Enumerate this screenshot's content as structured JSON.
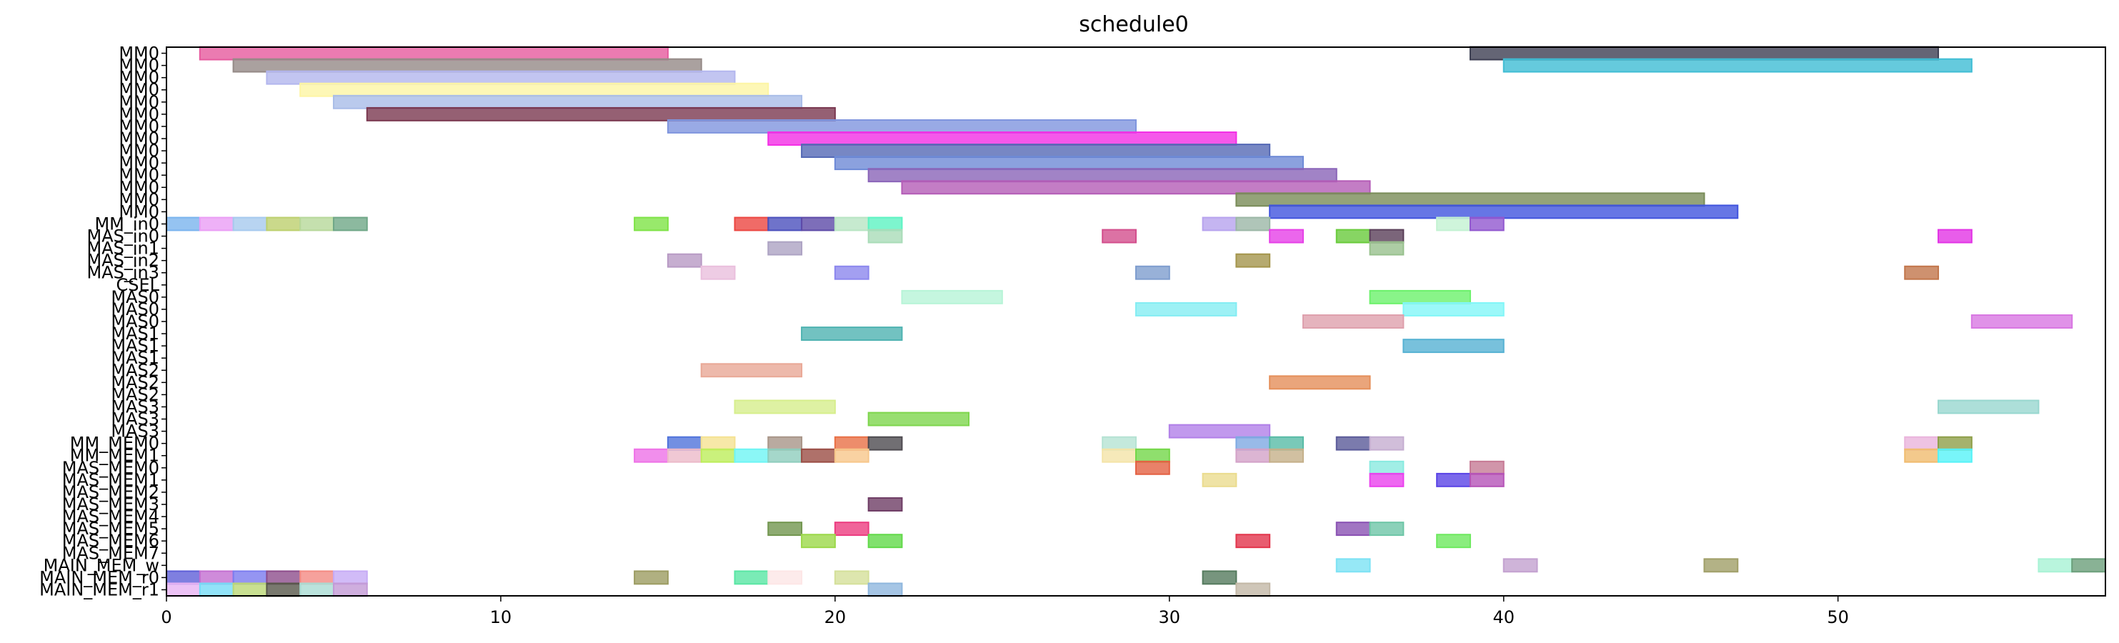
{
  "chart_data": {
    "type": "gantt",
    "title": "schedule0",
    "xlabel": "",
    "ylabel": "",
    "xlim": [
      0,
      58
    ],
    "xticks": [
      0,
      10,
      20,
      30,
      40,
      50
    ],
    "grid": false,
    "rows": [
      "MM0",
      "MM0",
      "MM0",
      "MM0",
      "MM0",
      "MM0",
      "MM0",
      "MM0",
      "MM0",
      "MM0",
      "MM0",
      "MM0",
      "MM0",
      "MM0",
      "MM_in0",
      "MAS_in0",
      "MAS_in1",
      "MAS_in2",
      "MAS_in3",
      "CSEL",
      "MAS0",
      "MAS0",
      "MAS0",
      "MAS1",
      "MAS1",
      "MAS1",
      "MAS2",
      "MAS2",
      "MAS2",
      "MAS3",
      "MAS3",
      "MAS3",
      "MM_MEM0",
      "MM_MEM1",
      "MAS_MEM0",
      "MAS_MEM1",
      "MAS_MEM2",
      "MAS_MEM3",
      "MAS_MEM4",
      "MAS_MEM5",
      "MAS_MEM6",
      "MAS_MEM7",
      "MAIN_MEM_w",
      "MAIN_MEM_r0",
      "MAIN_MEM_r1"
    ],
    "tasks": [
      {
        "row": 0,
        "start": 1,
        "end": 15,
        "color": "#e65a9e"
      },
      {
        "row": 0,
        "start": 39,
        "end": 53,
        "color": "#3d3f52"
      },
      {
        "row": 1,
        "start": 2,
        "end": 16,
        "color": "#958a87"
      },
      {
        "row": 1,
        "start": 40,
        "end": 54,
        "color": "#3fbdd4"
      },
      {
        "row": 2,
        "start": 3,
        "end": 17,
        "color": "#b3b6ee"
      },
      {
        "row": 3,
        "start": 4,
        "end": 18,
        "color": "#fdf5a4"
      },
      {
        "row": 4,
        "start": 5,
        "end": 19,
        "color": "#a9bde8"
      },
      {
        "row": 5,
        "start": 6,
        "end": 20,
        "color": "#7a3850"
      },
      {
        "row": 6,
        "start": 15,
        "end": 29,
        "color": "#7f95de"
      },
      {
        "row": 7,
        "start": 18,
        "end": 32,
        "color": "#f32ee5"
      },
      {
        "row": 8,
        "start": 19,
        "end": 33,
        "color": "#5569b5"
      },
      {
        "row": 9,
        "start": 20,
        "end": 34,
        "color": "#6e8ad6"
      },
      {
        "row": 10,
        "start": 21,
        "end": 35,
        "color": "#8a64b8"
      },
      {
        "row": 11,
        "start": 22,
        "end": 36,
        "color": "#b45cb7"
      },
      {
        "row": 12,
        "start": 32,
        "end": 46,
        "color": "#798c58"
      },
      {
        "row": 13,
        "start": 33,
        "end": 47,
        "color": "#4054de"
      },
      {
        "row": 14,
        "start": 0,
        "end": 1,
        "color": "#7ab4ee"
      },
      {
        "row": 14,
        "start": 1,
        "end": 2,
        "color": "#ea9ef5"
      },
      {
        "row": 14,
        "start": 2,
        "end": 3,
        "color": "#a6c9ee"
      },
      {
        "row": 14,
        "start": 3,
        "end": 4,
        "color": "#bdd06e"
      },
      {
        "row": 14,
        "start": 4,
        "end": 5,
        "color": "#b7d89a"
      },
      {
        "row": 14,
        "start": 5,
        "end": 6,
        "color": "#6fa787"
      },
      {
        "row": 14,
        "start": 14,
        "end": 15,
        "color": "#7ee346"
      },
      {
        "row": 14,
        "start": 17,
        "end": 18,
        "color": "#ec4641"
      },
      {
        "row": 14,
        "start": 18,
        "end": 19,
        "color": "#4b50bd"
      },
      {
        "row": 14,
        "start": 19,
        "end": 20,
        "color": "#5d4aa8"
      },
      {
        "row": 14,
        "start": 20,
        "end": 21,
        "color": "#b8e5c3"
      },
      {
        "row": 14,
        "start": 21,
        "end": 22,
        "color": "#5df3c2"
      },
      {
        "row": 14,
        "start": 31,
        "end": 32,
        "color": "#b7a3ee"
      },
      {
        "row": 14,
        "start": 32,
        "end": 33,
        "color": "#9bb7a6"
      },
      {
        "row": 14,
        "start": 38,
        "end": 39,
        "color": "#c3f2d2"
      },
      {
        "row": 14,
        "start": 39,
        "end": 40,
        "color": "#9157cf"
      },
      {
        "row": 15,
        "start": 21,
        "end": 22,
        "color": "#a9dcb8"
      },
      {
        "row": 15,
        "start": 28,
        "end": 29,
        "color": "#d34f8d"
      },
      {
        "row": 15,
        "start": 33,
        "end": 34,
        "color": "#e640e7"
      },
      {
        "row": 15,
        "start": 35,
        "end": 36,
        "color": "#69cb3c"
      },
      {
        "row": 15,
        "start": 36,
        "end": 37,
        "color": "#5a3f59"
      },
      {
        "row": 15,
        "start": 53,
        "end": 54,
        "color": "#e234e5"
      },
      {
        "row": 16,
        "start": 18,
        "end": 19,
        "color": "#ada3c3"
      },
      {
        "row": 16,
        "start": 36,
        "end": 37,
        "color": "#98c18d"
      },
      {
        "row": 17,
        "start": 15,
        "end": 16,
        "color": "#b89ac4"
      },
      {
        "row": 17,
        "start": 32,
        "end": 33,
        "color": "#a4954c"
      },
      {
        "row": 18,
        "start": 16,
        "end": 17,
        "color": "#eabfdd"
      },
      {
        "row": 18,
        "start": 20,
        "end": 21,
        "color": "#8c87ee"
      },
      {
        "row": 18,
        "start": 29,
        "end": 30,
        "color": "#7e9dce"
      },
      {
        "row": 18,
        "start": 52,
        "end": 53,
        "color": "#c2764b"
      },
      {
        "row": 20,
        "start": 22,
        "end": 25,
        "color": "#b7f4d7"
      },
      {
        "row": 20,
        "start": 36,
        "end": 39,
        "color": "#6cf16b"
      },
      {
        "row": 21,
        "start": 29,
        "end": 32,
        "color": "#84edf3"
      },
      {
        "row": 21,
        "start": 37,
        "end": 40,
        "color": "#82f6f8"
      },
      {
        "row": 22,
        "start": 34,
        "end": 37,
        "color": "#dea0ad"
      },
      {
        "row": 22,
        "start": 54,
        "end": 57,
        "color": "#d877e2"
      },
      {
        "row": 23,
        "start": 19,
        "end": 22,
        "color": "#4fb3b1"
      },
      {
        "row": 24,
        "start": 37,
        "end": 40,
        "color": "#56b2d3"
      },
      {
        "row": 26,
        "start": 16,
        "end": 19,
        "color": "#e9a896"
      },
      {
        "row": 27,
        "start": 33,
        "end": 36,
        "color": "#e58f5a"
      },
      {
        "row": 29,
        "start": 17,
        "end": 20,
        "color": "#d6ee8c"
      },
      {
        "row": 29,
        "start": 53,
        "end": 56,
        "color": "#98d7cf"
      },
      {
        "row": 30,
        "start": 21,
        "end": 24,
        "color": "#7ed64d"
      },
      {
        "row": 31,
        "start": 30,
        "end": 33,
        "color": "#b17fe8"
      },
      {
        "row": 32,
        "start": 15,
        "end": 16,
        "color": "#5073db"
      },
      {
        "row": 32,
        "start": 16,
        "end": 17,
        "color": "#f5e292"
      },
      {
        "row": 32,
        "start": 18,
        "end": 19,
        "color": "#a89588"
      },
      {
        "row": 32,
        "start": 20,
        "end": 21,
        "color": "#e97046"
      },
      {
        "row": 32,
        "start": 21,
        "end": 22,
        "color": "#4e4b50"
      },
      {
        "row": 32,
        "start": 28,
        "end": 29,
        "color": "#b5e3d3"
      },
      {
        "row": 32,
        "start": 32,
        "end": 33,
        "color": "#7ea9e2"
      },
      {
        "row": 32,
        "start": 33,
        "end": 34,
        "color": "#57bba6"
      },
      {
        "row": 32,
        "start": 35,
        "end": 36,
        "color": "#5a5a99"
      },
      {
        "row": 32,
        "start": 36,
        "end": 37,
        "color": "#c5aed1"
      },
      {
        "row": 32,
        "start": 52,
        "end": 53,
        "color": "#eab4dc"
      },
      {
        "row": 32,
        "start": 53,
        "end": 54,
        "color": "#8e9f49"
      },
      {
        "row": 33,
        "start": 14,
        "end": 15,
        "color": "#ee72e7"
      },
      {
        "row": 33,
        "start": 15,
        "end": 16,
        "color": "#ecbac9"
      },
      {
        "row": 33,
        "start": 16,
        "end": 17,
        "color": "#bdee5b"
      },
      {
        "row": 33,
        "start": 17,
        "end": 18,
        "color": "#6ef5f4"
      },
      {
        "row": 33,
        "start": 18,
        "end": 19,
        "color": "#8fcdbd"
      },
      {
        "row": 33,
        "start": 19,
        "end": 20,
        "color": "#9b4d45"
      },
      {
        "row": 33,
        "start": 20,
        "end": 21,
        "color": "#f7c78b"
      },
      {
        "row": 33,
        "start": 28,
        "end": 29,
        "color": "#f4e4a8"
      },
      {
        "row": 33,
        "start": 29,
        "end": 30,
        "color": "#73d748"
      },
      {
        "row": 33,
        "start": 32,
        "end": 33,
        "color": "#d3a2c8"
      },
      {
        "row": 33,
        "start": 33,
        "end": 34,
        "color": "#c5b08a"
      },
      {
        "row": 33,
        "start": 52,
        "end": 53,
        "color": "#f0bc6f"
      },
      {
        "row": 33,
        "start": 53,
        "end": 54,
        "color": "#56f2f7"
      },
      {
        "row": 34,
        "start": 29,
        "end": 30,
        "color": "#e46143"
      },
      {
        "row": 34,
        "start": 36,
        "end": 37,
        "color": "#89eae0"
      },
      {
        "row": 34,
        "start": 39,
        "end": 40,
        "color": "#c67a95"
      },
      {
        "row": 35,
        "start": 31,
        "end": 32,
        "color": "#ebdc8e"
      },
      {
        "row": 35,
        "start": 36,
        "end": 37,
        "color": "#ea41ee"
      },
      {
        "row": 35,
        "start": 38,
        "end": 39,
        "color": "#5a44e6"
      },
      {
        "row": 35,
        "start": 39,
        "end": 40,
        "color": "#b553b8"
      },
      {
        "row": 37,
        "start": 21,
        "end": 22,
        "color": "#6e3d65"
      },
      {
        "row": 39,
        "start": 18,
        "end": 19,
        "color": "#72964f"
      },
      {
        "row": 39,
        "start": 20,
        "end": 21,
        "color": "#ec3c80"
      },
      {
        "row": 39,
        "start": 35,
        "end": 36,
        "color": "#8a52b3"
      },
      {
        "row": 39,
        "start": 36,
        "end": 37,
        "color": "#6ec6a7"
      },
      {
        "row": 40,
        "start": 19,
        "end": 20,
        "color": "#9bd849"
      },
      {
        "row": 40,
        "start": 21,
        "end": 22,
        "color": "#62d94a"
      },
      {
        "row": 40,
        "start": 32,
        "end": 33,
        "color": "#e2354c"
      },
      {
        "row": 40,
        "start": 38,
        "end": 39,
        "color": "#6de95e"
      },
      {
        "row": 42,
        "start": 35,
        "end": 36,
        "color": "#7ce2f4"
      },
      {
        "row": 42,
        "start": 40,
        "end": 41,
        "color": "#c3a1d0"
      },
      {
        "row": 42,
        "start": 46,
        "end": 47,
        "color": "#a09f68"
      },
      {
        "row": 42,
        "start": 56,
        "end": 57,
        "color": "#a8f2d5"
      },
      {
        "row": 42,
        "start": 57,
        "end": 58,
        "color": "#6b9f7b"
      },
      {
        "row": 43,
        "start": 0,
        "end": 1,
        "color": "#5f5fd8"
      },
      {
        "row": 43,
        "start": 1,
        "end": 2,
        "color": "#c36ed1"
      },
      {
        "row": 43,
        "start": 2,
        "end": 3,
        "color": "#7b7bef"
      },
      {
        "row": 43,
        "start": 3,
        "end": 4,
        "color": "#8d4d8c"
      },
      {
        "row": 43,
        "start": 4,
        "end": 5,
        "color": "#f48a83"
      },
      {
        "row": 43,
        "start": 5,
        "end": 6,
        "color": "#c6aaf5"
      },
      {
        "row": 43,
        "start": 14,
        "end": 15,
        "color": "#9c9c62"
      },
      {
        "row": 43,
        "start": 17,
        "end": 18,
        "color": "#59e6a4"
      },
      {
        "row": 43,
        "start": 18,
        "end": 19,
        "color": "#fde6e6"
      },
      {
        "row": 43,
        "start": 20,
        "end": 21,
        "color": "#d4e09a"
      },
      {
        "row": 43,
        "start": 31,
        "end": 32,
        "color": "#557b5e"
      },
      {
        "row": 44,
        "start": 0,
        "end": 1,
        "color": "#e7b3f3"
      },
      {
        "row": 44,
        "start": 1,
        "end": 2,
        "color": "#75dcf6"
      },
      {
        "row": 44,
        "start": 2,
        "end": 3,
        "color": "#bcd875"
      },
      {
        "row": 44,
        "start": 3,
        "end": 4,
        "color": "#58584a"
      },
      {
        "row": 44,
        "start": 4,
        "end": 5,
        "color": "#a9dcd3"
      },
      {
        "row": 44,
        "start": 5,
        "end": 6,
        "color": "#c39ad6"
      },
      {
        "row": 44,
        "start": 21,
        "end": 22,
        "color": "#8fb7de"
      },
      {
        "row": 44,
        "start": 32,
        "end": 33,
        "color": "#c3b8a6"
      }
    ]
  }
}
